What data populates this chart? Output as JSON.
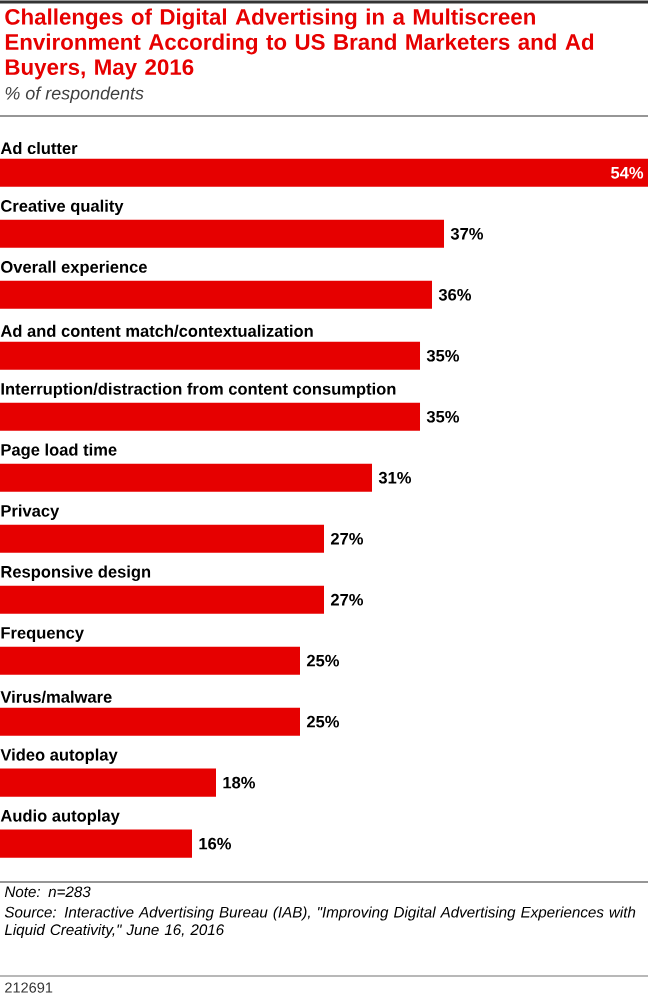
{
  "chart_data": {
    "type": "bar",
    "orientation": "horizontal",
    "title": "Challenges of Digital Advertising in a Multiscreen Environment According to US Brand Marketers and Ad Buyers, May 2016",
    "subtitle": "% of respondents",
    "categories": [
      "Ad clutter",
      "Creative quality",
      "Overall experience",
      "Ad and content match/contextualization",
      "Interruption/distraction from content consumption",
      "Page load time",
      "Privacy",
      "Responsive design",
      "Frequency",
      "Virus/malware",
      "Video autoplay",
      "Audio autoplay"
    ],
    "values": [
      54,
      37,
      36,
      35,
      35,
      31,
      27,
      27,
      25,
      25,
      18,
      16
    ],
    "value_labels": [
      "54%",
      "37%",
      "36%",
      "35%",
      "35%",
      "31%",
      "27%",
      "27%",
      "25%",
      "25%",
      "18%",
      "16%"
    ],
    "color": "#e60000",
    "annotations": [
      "Note: n=283",
      "Source: Interactive Advertising Bureau (IAB), \"Improving Digital Advertising Experiences with Liquid Creativity,\" June 16, 2016",
      "212691"
    ]
  }
}
